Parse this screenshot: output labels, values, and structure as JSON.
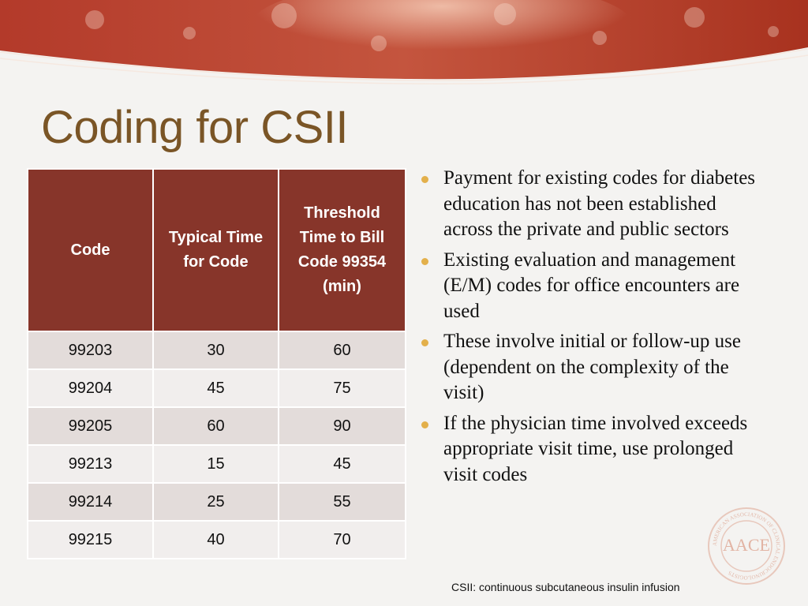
{
  "slide": {
    "title": "Coding for CSII",
    "footnote": "CSII: continuous subcutaneous insulin infusion"
  },
  "table": {
    "headers": [
      "Code",
      "Typical Time for Code",
      "Threshold Time to Bill Code 99354 (min)"
    ],
    "rows": [
      [
        "99203",
        "30",
        "60"
      ],
      [
        "99204",
        "45",
        "75"
      ],
      [
        "99205",
        "60",
        "90"
      ],
      [
        "99213",
        "15",
        "45"
      ],
      [
        "99214",
        "25",
        "55"
      ],
      [
        "99215",
        "40",
        "70"
      ]
    ]
  },
  "bullets": [
    "Payment for existing codes for diabetes education has not been established across the private and public sectors",
    "Existing evaluation and management (E/M) codes for office encounters are used",
    "These involve initial or follow-up use (dependent on the complexity of the visit)",
    "If the physician time involved exceeds appropriate visit time, use prolonged visit codes"
  ],
  "logo": {
    "text": "AACE",
    "ring_text": "AMERICAN ASSOCIATION OF CLINICAL ENDOCRINOLOGISTS"
  },
  "colors": {
    "title": "#7a5526",
    "table_header": "#87352a",
    "row_odd": "#e3dcda",
    "row_even": "#f1eeed",
    "bullet": "#e3b04b",
    "banner": "#b9402d"
  }
}
